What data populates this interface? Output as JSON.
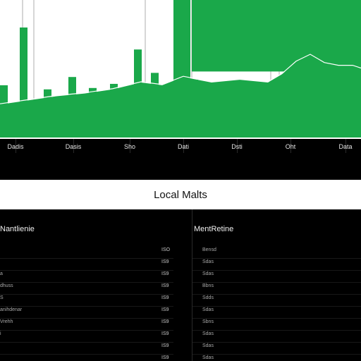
{
  "chart_data": {
    "type": "bar",
    "title": "",
    "xlabel": "",
    "ylabel": "",
    "x_tick_labels": [
      "Dadis",
      "Dasis",
      "Sho",
      "Dati",
      "Dsti",
      "Oht",
      "Data"
    ],
    "bars": [
      {
        "x": 3,
        "value": 38
      },
      {
        "x": 28,
        "value": 80
      },
      {
        "x": 62,
        "value": 35
      },
      {
        "x": 97,
        "value": 44
      },
      {
        "x": 126,
        "value": 36
      },
      {
        "x": 156,
        "value": 39
      },
      {
        "x": 190,
        "value": 64
      },
      {
        "x": 214,
        "value": 47
      },
      {
        "x": 246,
        "value": 100
      },
      {
        "x": 270,
        "value": 42
      }
    ],
    "area": [
      [
        0,
        24
      ],
      [
        40,
        27
      ],
      [
        80,
        30
      ],
      [
        120,
        32
      ],
      [
        160,
        35
      ],
      [
        200,
        40
      ],
      [
        230,
        38
      ],
      [
        260,
        44
      ],
      [
        300,
        40
      ],
      [
        340,
        42
      ],
      [
        380,
        40
      ],
      [
        400,
        46
      ],
      [
        420,
        55
      ],
      [
        440,
        60
      ],
      [
        460,
        54
      ],
      [
        480,
        52
      ],
      [
        500,
        52
      ],
      [
        512,
        50
      ]
    ],
    "ylim": [
      0,
      100
    ],
    "colors": {
      "series": "#1aa84a",
      "line": "#ffffff",
      "background": "#ffffff"
    }
  },
  "title_bar": {
    "label": "Local Malts"
  },
  "left_table": {
    "header": "Nantlienie",
    "rows": [
      {
        "name": "",
        "value": "ISO"
      },
      {
        "name": "",
        "value": "IS9"
      },
      {
        "name": "a",
        "value": "IS9"
      },
      {
        "name": "dhuss",
        "value": "IS9"
      },
      {
        "name": "S",
        "value": "IS9"
      },
      {
        "name": "anihdenar",
        "value": "IS9"
      },
      {
        "name": "Vrehh",
        "value": "IS9"
      },
      {
        "name": "i",
        "value": "IS9"
      },
      {
        "name": "",
        "value": "IS9"
      },
      {
        "name": "",
        "value": "IS9"
      }
    ]
  },
  "right_table": {
    "header": "MentRetine",
    "rows": [
      "Bensd",
      "Sdas",
      "Sdas",
      "Bbns",
      "Sdds",
      "Sdas",
      "Sbns",
      "Sdas",
      "Sdas",
      "Sdas"
    ]
  }
}
